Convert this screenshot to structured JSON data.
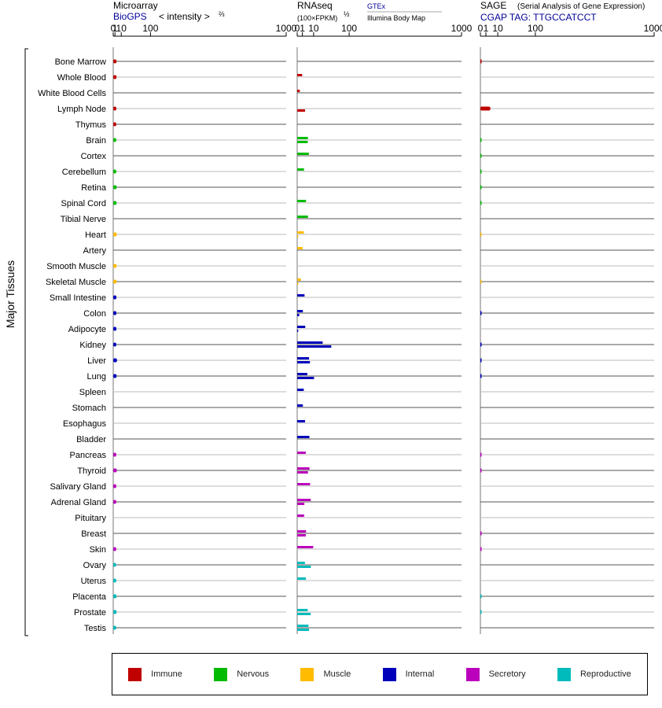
{
  "chart_data": {
    "type": "bar",
    "y_axis_label": "Major Tissues",
    "panels": [
      {
        "id": "microarray",
        "title": "Microarray",
        "subtitle": "BioGPS",
        "scale_label": "< intensity >",
        "scale_power": "⅔",
        "ticks": [
          "0",
          "1",
          "10",
          "100",
          "1000"
        ],
        "tick_values": [
          0,
          1,
          10,
          100,
          1000
        ]
      },
      {
        "id": "rnaseq",
        "title": "RNAseq",
        "scale_label": "(100×FPKM)",
        "scale_power": "½",
        "source_top": "GTEx",
        "source_bottom": "Illumina Body Map",
        "ticks": [
          "0",
          "1",
          "10",
          "100",
          "1000"
        ],
        "tick_values": [
          0,
          1,
          10,
          100,
          1000
        ]
      },
      {
        "id": "sage",
        "title": "SAGE",
        "title_note": "(Serial Analysis of Gene Expression)",
        "subtitle": "CGAP  TAG: TTGCCATCCT",
        "ticks": [
          "0",
          "1",
          "10",
          "100",
          "1000"
        ],
        "tick_values": [
          0,
          1,
          10,
          100,
          1000
        ]
      }
    ],
    "categories": [
      "Immune",
      "Nervous",
      "Muscle",
      "Internal",
      "Secretory",
      "Reproductive"
    ],
    "colors": {
      "Immune": "#c00000",
      "Nervous": "#00bb00",
      "Muscle": "#ffbb00",
      "Internal": "#0000bb",
      "Secretory": "#bb00bb",
      "Reproductive": "#00bbbb"
    },
    "tissues": [
      {
        "name": "Bone Marrow",
        "category": "Immune",
        "microarray": 2.6,
        "gtex": null,
        "ibm": null,
        "sage": 0.03
      },
      {
        "name": "Whole Blood",
        "category": "Immune",
        "microarray": 2.6,
        "gtex": 0.9,
        "ibm": null,
        "sage": null
      },
      {
        "name": "White Blood Cells",
        "category": "Immune",
        "microarray": null,
        "gtex": 0.25,
        "ibm": null,
        "sage": null
      },
      {
        "name": "Lymph Node",
        "category": "Immune",
        "microarray": 2.4,
        "gtex": null,
        "ibm": 2.3,
        "sage": 3.3
      },
      {
        "name": "Thymus",
        "category": "Immune",
        "microarray": 2.3,
        "gtex": null,
        "ibm": null,
        "sage": null
      },
      {
        "name": "Brain",
        "category": "Nervous",
        "microarray": 2.3,
        "gtex": 4.3,
        "ibm": 4.1,
        "sage": 0.03
      },
      {
        "name": "Cortex",
        "category": "Nervous",
        "microarray": null,
        "gtex": 5.0,
        "ibm": null,
        "sage": 0.03
      },
      {
        "name": "Cerebellum",
        "category": "Nervous",
        "microarray": 2.3,
        "gtex": 1.7,
        "ibm": null,
        "sage": 0.03
      },
      {
        "name": "Retina",
        "category": "Nervous",
        "microarray": 2.8,
        "gtex": null,
        "ibm": null,
        "sage": 0.03
      },
      {
        "name": "Spinal Cord",
        "category": "Nervous",
        "microarray": 2.6,
        "gtex": 2.9,
        "ibm": null,
        "sage": 0.03
      },
      {
        "name": "Tibial Nerve",
        "category": "Nervous",
        "microarray": null,
        "gtex": 4.3,
        "ibm": null,
        "sage": null
      },
      {
        "name": "Heart",
        "category": "Muscle",
        "microarray": 2.9,
        "gtex": 1.7,
        "ibm": 0.04,
        "sage": 0.02
      },
      {
        "name": "Artery",
        "category": "Muscle",
        "microarray": null,
        "gtex": 1.1,
        "ibm": null,
        "sage": null
      },
      {
        "name": "Smooth Muscle",
        "category": "Muscle",
        "microarray": 2.7,
        "gtex": null,
        "ibm": null,
        "sage": null
      },
      {
        "name": "Skeletal Muscle",
        "category": "Muscle",
        "microarray": 2.7,
        "gtex": 0.5,
        "ibm": 0.04,
        "sage": 0.02
      },
      {
        "name": "Small Intestine",
        "category": "Internal",
        "microarray": 2.5,
        "gtex": 2.0,
        "ibm": null,
        "sage": null
      },
      {
        "name": "Colon",
        "category": "Internal",
        "microarray": 2.5,
        "gtex": 1.2,
        "ibm": 0.15,
        "sage": 0.03
      },
      {
        "name": "Adipocyte",
        "category": "Internal",
        "microarray": 2.5,
        "gtex": 2.4,
        "ibm": 0.04,
        "sage": null
      },
      {
        "name": "Kidney",
        "category": "Internal",
        "microarray": 2.3,
        "gtex": 24,
        "ibm": 43,
        "sage": 0.03
      },
      {
        "name": "Liver",
        "category": "Internal",
        "microarray": 3.2,
        "gtex": 5.2,
        "ibm": 6.0,
        "sage": 0.03
      },
      {
        "name": "Lung",
        "category": "Internal",
        "microarray": 2.7,
        "gtex": 3.8,
        "ibm": 10.5,
        "sage": 0.03
      },
      {
        "name": "Spleen",
        "category": "Internal",
        "microarray": null,
        "gtex": 1.6,
        "ibm": null,
        "sage": null
      },
      {
        "name": "Stomach",
        "category": "Internal",
        "microarray": null,
        "gtex": 1.2,
        "ibm": null,
        "sage": null
      },
      {
        "name": "Esophagus",
        "category": "Internal",
        "microarray": null,
        "gtex": 2.3,
        "ibm": null,
        "sage": null
      },
      {
        "name": "Bladder",
        "category": "Internal",
        "microarray": null,
        "gtex": 5.5,
        "ibm": null,
        "sage": null
      },
      {
        "name": "Pancreas",
        "category": "Secretory",
        "microarray": 2.3,
        "gtex": 2.7,
        "ibm": null,
        "sage": 0.03
      },
      {
        "name": "Thyroid",
        "category": "Secretory",
        "microarray": 2.9,
        "gtex": 5.6,
        "ibm": 4.3,
        "sage": 0.03
      },
      {
        "name": "Salivary Gland",
        "category": "Secretory",
        "microarray": 2.3,
        "gtex": 6.2,
        "ibm": null,
        "sage": null
      },
      {
        "name": "Adrenal Gland",
        "category": "Secretory",
        "microarray": 2.3,
        "gtex": 6.8,
        "ibm": 1.9,
        "sage": null
      },
      {
        "name": "Pituitary",
        "category": "Secretory",
        "microarray": null,
        "gtex": 1.8,
        "ibm": null,
        "sage": null
      },
      {
        "name": "Breast",
        "category": "Secretory",
        "microarray": null,
        "gtex": 2.9,
        "ibm": 2.7,
        "sage": 0.03
      },
      {
        "name": "Skin",
        "category": "Secretory",
        "microarray": 2.3,
        "gtex": 9.5,
        "ibm": null,
        "sage": 0.03
      },
      {
        "name": "Ovary",
        "category": "Reproductive",
        "microarray": 2.1,
        "gtex": 2.2,
        "ibm": 6.9,
        "sage": null
      },
      {
        "name": "Uterus",
        "category": "Reproductive",
        "microarray": 2.3,
        "gtex": 2.8,
        "ibm": null,
        "sage": null
      },
      {
        "name": "Placenta",
        "category": "Reproductive",
        "microarray": 2.6,
        "gtex": null,
        "ibm": null,
        "sage": 0.03
      },
      {
        "name": "Prostate",
        "category": "Reproductive",
        "microarray": 2.7,
        "gtex": 4.1,
        "ibm": 6.8,
        "sage": 0.03
      },
      {
        "name": "Testis",
        "category": "Reproductive",
        "microarray": 2.3,
        "gtex": 4.7,
        "ibm": 5.2,
        "sage": null
      }
    ]
  }
}
